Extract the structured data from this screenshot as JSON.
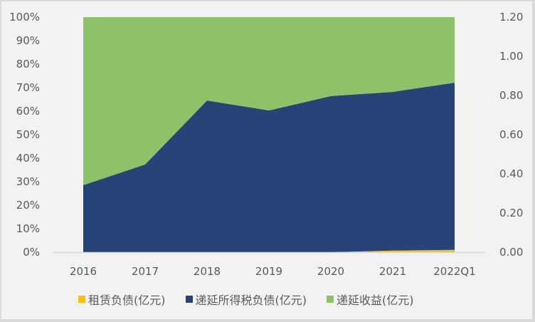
{
  "chart_data": {
    "type": "area",
    "stacked": "percent",
    "title": "",
    "xlabel": "",
    "ylabel": "",
    "categories": [
      "2016",
      "2017",
      "2018",
      "2019",
      "2020",
      "2021",
      "2022Q1"
    ],
    "series": [
      {
        "name": "租赁负债(亿元)",
        "color": "#ffc000",
        "share_pct": [
          0,
          0,
          0,
          0,
          0,
          0.7,
          1.0
        ]
      },
      {
        "name": "递延所得税负债(亿元)",
        "color": "#264478",
        "share_pct": [
          28.5,
          37.3,
          64.5,
          60.3,
          66.4,
          67.5,
          71.1
        ]
      },
      {
        "name": "递延收益(亿元)",
        "color": "#8dc26a",
        "share_pct": [
          71.5,
          62.7,
          35.5,
          39.7,
          33.6,
          31.8,
          27.9
        ]
      }
    ],
    "left_axis": {
      "ticks": [
        "0%",
        "10%",
        "20%",
        "30%",
        "40%",
        "50%",
        "60%",
        "70%",
        "80%",
        "90%",
        "100%"
      ],
      "range": [
        0,
        100
      ]
    },
    "right_axis": {
      "ticks": [
        "0.00",
        "0.20",
        "0.40",
        "0.60",
        "0.80",
        "1.00",
        "1.20"
      ],
      "range": [
        0,
        1.2
      ]
    },
    "grid": false,
    "legend_position": "bottom"
  },
  "legend": {
    "items": [
      {
        "label": "租赁负债(亿元)",
        "color": "#ffc000"
      },
      {
        "label": "递延所得税负债(亿元)",
        "color": "#264478"
      },
      {
        "label": "递延收益(亿元)",
        "color": "#8dc26a"
      }
    ]
  }
}
